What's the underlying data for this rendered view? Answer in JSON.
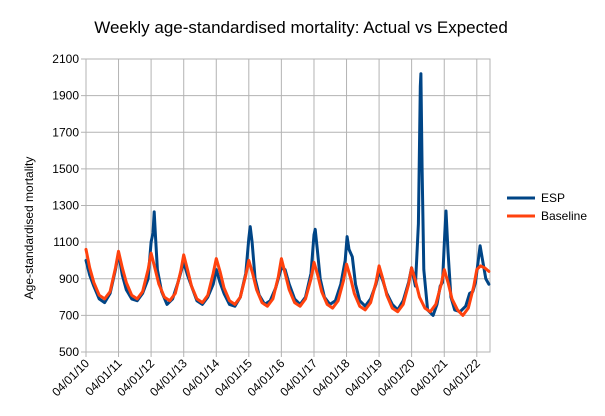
{
  "chart_data": {
    "type": "line",
    "title": "Weekly age-standardised mortality: Actual vs Expected",
    "xlabel": "",
    "ylabel": "Age-standardised mortality",
    "ylim": [
      500,
      2100
    ],
    "yticks": [
      500,
      700,
      900,
      1100,
      1300,
      1500,
      1700,
      1900,
      2100
    ],
    "xlim": [
      "2010-01-04",
      "2022-06-01"
    ],
    "xticks": [
      "04/01/10",
      "04/01/11",
      "04/01/12",
      "04/01/13",
      "04/01/14",
      "04/01/15",
      "04/01/16",
      "04/01/17",
      "04/01/18",
      "04/01/19",
      "04/01/20",
      "04/01/21",
      "04/01/22"
    ],
    "grid": true,
    "legend_position": "right",
    "series": [
      {
        "name": "ESP",
        "color": "#004586",
        "points": [
          [
            "2010-01-04",
            1000
          ],
          [
            "2010-02-15",
            920
          ],
          [
            "2010-04-01",
            860
          ],
          [
            "2010-06-01",
            790
          ],
          [
            "2010-08-01",
            770
          ],
          [
            "2010-10-01",
            820
          ],
          [
            "2010-12-01",
            950
          ],
          [
            "2011-01-04",
            1040
          ],
          [
            "2011-02-15",
            920
          ],
          [
            "2011-04-01",
            840
          ],
          [
            "2011-06-01",
            790
          ],
          [
            "2011-08-01",
            780
          ],
          [
            "2011-10-01",
            820
          ],
          [
            "2011-12-01",
            900
          ],
          [
            "2012-01-04",
            1100
          ],
          [
            "2012-01-25",
            1150
          ],
          [
            "2012-02-08",
            1265
          ],
          [
            "2012-02-22",
            1130
          ],
          [
            "2012-03-15",
            950
          ],
          [
            "2012-05-01",
            830
          ],
          [
            "2012-07-01",
            760
          ],
          [
            "2012-09-01",
            790
          ],
          [
            "2012-11-01",
            880
          ],
          [
            "2013-01-04",
            990
          ],
          [
            "2013-02-15",
            920
          ],
          [
            "2013-04-01",
            860
          ],
          [
            "2013-06-01",
            780
          ],
          [
            "2013-08-01",
            760
          ],
          [
            "2013-10-01",
            800
          ],
          [
            "2013-12-01",
            870
          ],
          [
            "2014-01-04",
            950
          ],
          [
            "2014-02-15",
            880
          ],
          [
            "2014-04-01",
            820
          ],
          [
            "2014-06-01",
            760
          ],
          [
            "2014-08-01",
            750
          ],
          [
            "2014-10-01",
            800
          ],
          [
            "2014-12-01",
            930
          ],
          [
            "2015-01-04",
            1120
          ],
          [
            "2015-01-20",
            1185
          ],
          [
            "2015-02-10",
            1100
          ],
          [
            "2015-03-15",
            900
          ],
          [
            "2015-05-01",
            810
          ],
          [
            "2015-07-01",
            760
          ],
          [
            "2015-09-01",
            780
          ],
          [
            "2015-11-01",
            850
          ],
          [
            "2016-01-04",
            960
          ],
          [
            "2016-02-15",
            950
          ],
          [
            "2016-04-01",
            870
          ],
          [
            "2016-06-01",
            790
          ],
          [
            "2016-08-01",
            760
          ],
          [
            "2016-10-01",
            800
          ],
          [
            "2016-12-01",
            930
          ],
          [
            "2017-01-04",
            1140
          ],
          [
            "2017-01-18",
            1170
          ],
          [
            "2017-02-10",
            1060
          ],
          [
            "2017-03-15",
            900
          ],
          [
            "2017-05-01",
            800
          ],
          [
            "2017-07-01",
            760
          ],
          [
            "2017-09-01",
            780
          ],
          [
            "2017-11-01",
            870
          ],
          [
            "2017-12-20",
            1000
          ],
          [
            "2018-01-10",
            1130
          ],
          [
            "2018-02-01",
            1060
          ],
          [
            "2018-03-10",
            1020
          ],
          [
            "2018-04-15",
            870
          ],
          [
            "2018-06-01",
            780
          ],
          [
            "2018-08-01",
            750
          ],
          [
            "2018-10-01",
            790
          ],
          [
            "2018-12-01",
            870
          ],
          [
            "2019-01-04",
            940
          ],
          [
            "2019-02-15",
            890
          ],
          [
            "2019-04-01",
            820
          ],
          [
            "2019-06-01",
            760
          ],
          [
            "2019-08-01",
            730
          ],
          [
            "2019-10-01",
            780
          ],
          [
            "2019-12-01",
            880
          ],
          [
            "2020-01-04",
            960
          ],
          [
            "2020-02-15",
            860
          ],
          [
            "2020-03-20",
            1200
          ],
          [
            "2020-04-10",
            1950
          ],
          [
            "2020-04-17",
            2020
          ],
          [
            "2020-05-01",
            1500
          ],
          [
            "2020-05-20",
            950
          ],
          [
            "2020-07-01",
            730
          ],
          [
            "2020-09-01",
            700
          ],
          [
            "2020-10-15",
            760
          ],
          [
            "2020-11-20",
            860
          ],
          [
            "2020-12-15",
            880
          ],
          [
            "2021-01-10",
            1150
          ],
          [
            "2021-01-24",
            1270
          ],
          [
            "2021-02-15",
            1050
          ],
          [
            "2021-03-20",
            800
          ],
          [
            "2021-05-01",
            730
          ],
          [
            "2021-07-01",
            720
          ],
          [
            "2021-09-01",
            750
          ],
          [
            "2021-10-15",
            820
          ],
          [
            "2021-11-20",
            830
          ],
          [
            "2021-12-20",
            880
          ],
          [
            "2022-01-15",
            980
          ],
          [
            "2022-02-10",
            1080
          ],
          [
            "2022-03-10",
            1000
          ],
          [
            "2022-04-15",
            900
          ],
          [
            "2022-05-20",
            870
          ]
        ]
      },
      {
        "name": "Baseline",
        "color": "#ff420e",
        "points": [
          [
            "2010-01-04",
            1060
          ],
          [
            "2010-02-15",
            960
          ],
          [
            "2010-04-01",
            880
          ],
          [
            "2010-06-01",
            810
          ],
          [
            "2010-08-01",
            790
          ],
          [
            "2010-10-01",
            830
          ],
          [
            "2010-12-01",
            960
          ],
          [
            "2011-01-04",
            1050
          ],
          [
            "2011-02-15",
            960
          ],
          [
            "2011-04-01",
            880
          ],
          [
            "2011-06-01",
            810
          ],
          [
            "2011-08-01",
            790
          ],
          [
            "2011-10-01",
            830
          ],
          [
            "2011-12-01",
            950
          ],
          [
            "2012-01-04",
            1040
          ],
          [
            "2012-02-15",
            960
          ],
          [
            "2012-04-01",
            870
          ],
          [
            "2012-06-01",
            800
          ],
          [
            "2012-08-01",
            780
          ],
          [
            "2012-10-01",
            820
          ],
          [
            "2012-12-01",
            940
          ],
          [
            "2013-01-04",
            1030
          ],
          [
            "2013-02-15",
            950
          ],
          [
            "2013-04-01",
            860
          ],
          [
            "2013-06-01",
            790
          ],
          [
            "2013-08-01",
            770
          ],
          [
            "2013-10-01",
            810
          ],
          [
            "2013-12-01",
            930
          ],
          [
            "2014-01-04",
            1010
          ],
          [
            "2014-02-15",
            940
          ],
          [
            "2014-04-01",
            850
          ],
          [
            "2014-06-01",
            780
          ],
          [
            "2014-08-01",
            760
          ],
          [
            "2014-10-01",
            800
          ],
          [
            "2014-12-01",
            920
          ],
          [
            "2015-01-04",
            1000
          ],
          [
            "2015-02-15",
            930
          ],
          [
            "2015-04-01",
            840
          ],
          [
            "2015-06-01",
            770
          ],
          [
            "2015-08-01",
            750
          ],
          [
            "2015-10-01",
            790
          ],
          [
            "2015-12-01",
            910
          ],
          [
            "2016-01-04",
            1010
          ],
          [
            "2016-02-15",
            930
          ],
          [
            "2016-04-01",
            840
          ],
          [
            "2016-06-01",
            770
          ],
          [
            "2016-08-01",
            750
          ],
          [
            "2016-10-01",
            790
          ],
          [
            "2016-12-01",
            900
          ],
          [
            "2017-01-04",
            990
          ],
          [
            "2017-02-15",
            920
          ],
          [
            "2017-04-01",
            830
          ],
          [
            "2017-06-01",
            760
          ],
          [
            "2017-08-01",
            740
          ],
          [
            "2017-10-01",
            780
          ],
          [
            "2017-12-01",
            890
          ],
          [
            "2018-01-04",
            980
          ],
          [
            "2018-02-15",
            910
          ],
          [
            "2018-04-01",
            820
          ],
          [
            "2018-06-01",
            750
          ],
          [
            "2018-08-01",
            730
          ],
          [
            "2018-10-01",
            770
          ],
          [
            "2018-12-01",
            880
          ],
          [
            "2019-01-04",
            970
          ],
          [
            "2019-02-15",
            900
          ],
          [
            "2019-04-01",
            810
          ],
          [
            "2019-06-01",
            740
          ],
          [
            "2019-08-01",
            720
          ],
          [
            "2019-10-01",
            760
          ],
          [
            "2019-12-01",
            870
          ],
          [
            "2020-01-04",
            960
          ],
          [
            "2020-02-15",
            890
          ],
          [
            "2020-04-01",
            800
          ],
          [
            "2020-06-01",
            740
          ],
          [
            "2020-08-01",
            720
          ],
          [
            "2020-10-01",
            760
          ],
          [
            "2020-12-01",
            870
          ],
          [
            "2021-01-04",
            950
          ],
          [
            "2021-02-15",
            880
          ],
          [
            "2021-04-01",
            790
          ],
          [
            "2021-06-01",
            730
          ],
          [
            "2021-08-01",
            700
          ],
          [
            "2021-10-01",
            740
          ],
          [
            "2021-12-01",
            860
          ],
          [
            "2022-01-04",
            950
          ],
          [
            "2022-02-15",
            970
          ],
          [
            "2022-04-01",
            960
          ],
          [
            "2022-05-20",
            940
          ]
        ]
      }
    ]
  }
}
